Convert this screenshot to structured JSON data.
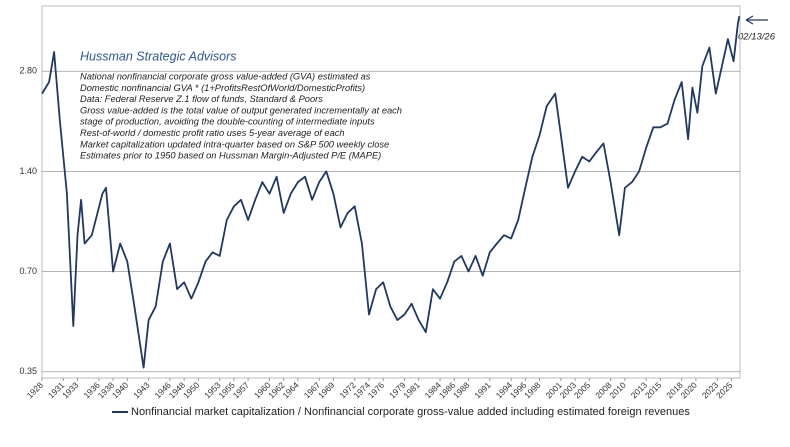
{
  "chart_data": {
    "type": "line",
    "title": "Hussman Strategic Advisors",
    "annotations": [
      "National nonfinancial corporate gross value-added (GVA) estimated as",
      "Domestic nonfinancial GVA * (1+ProfitsRestOfWorld/DomesticProfits)",
      "Data: Federal Reserve Z.1 flow of funds, Standard & Poors",
      "Gross value-added is the total value of output generated incrementally at each",
      "stage of production, avoiding the double-counting of intermediate inputs",
      "Rest-of-world / domestic profit ratio uses 5-year average of each",
      "Market capitalization updated intra-quarter based on S&P 500 weekly close",
      "Estimates prior to 1950 based on Hussman Margin-Adjusted P/E (MAPE)"
    ],
    "date_label": "02/13/26",
    "log_scale": true,
    "grid": true,
    "x": [
      1928.0,
      1929.0,
      1929.7,
      1930.5,
      1931.5,
      1932.4,
      1933.0,
      1933.5,
      1934,
      1935,
      1936.5,
      1937,
      1938,
      1939,
      1940,
      1941,
      1942.3,
      1943,
      1944,
      1945,
      1946,
      1947,
      1948,
      1949,
      1950,
      1951,
      1952,
      1953,
      1954,
      1955,
      1956,
      1957,
      1958,
      1959,
      1960,
      1961,
      1962,
      1963,
      1964,
      1965,
      1966,
      1967,
      1968,
      1969,
      1970,
      1971,
      1972,
      1973,
      1974,
      1975,
      1976,
      1977,
      1978,
      1979,
      1980,
      1981,
      1982,
      1983,
      1984,
      1985,
      1986,
      1987,
      1988,
      1989,
      1990,
      1991,
      1992,
      1993,
      1994,
      1995,
      1996,
      1997,
      1998,
      1999,
      2000.2,
      2001,
      2002,
      2003,
      2004,
      2005,
      2006,
      2007,
      2008,
      2009.2,
      2010,
      2011,
      2012,
      2013,
      2014,
      2015,
      2016,
      2017,
      2018,
      2018.9,
      2019.5,
      2020.2,
      2020.9,
      2021.9,
      2022.8,
      2023.5,
      2024.5,
      2025.3,
      2025.9,
      2026.1
    ],
    "series": [
      {
        "name": "Nonfinancial market capitalization / Nonfinancial corporate gross-value added including estimated foreign revenues",
        "color": "#1f3864",
        "values": [
          2.4,
          2.6,
          3.2,
          2.0,
          1.2,
          0.48,
          0.9,
          1.15,
          0.85,
          0.9,
          1.2,
          1.25,
          0.7,
          0.85,
          0.75,
          0.55,
          0.36,
          0.5,
          0.55,
          0.75,
          0.85,
          0.62,
          0.65,
          0.58,
          0.65,
          0.75,
          0.8,
          0.78,
          1.0,
          1.1,
          1.15,
          1.0,
          1.15,
          1.3,
          1.2,
          1.35,
          1.05,
          1.2,
          1.3,
          1.35,
          1.15,
          1.3,
          1.4,
          1.2,
          0.95,
          1.05,
          1.1,
          0.85,
          0.52,
          0.62,
          0.65,
          0.55,
          0.5,
          0.52,
          0.56,
          0.5,
          0.46,
          0.62,
          0.58,
          0.65,
          0.75,
          0.78,
          0.7,
          0.78,
          0.68,
          0.8,
          0.85,
          0.9,
          0.88,
          1.0,
          1.25,
          1.55,
          1.8,
          2.2,
          2.4,
          1.8,
          1.25,
          1.4,
          1.55,
          1.5,
          1.6,
          1.7,
          1.3,
          0.9,
          1.25,
          1.3,
          1.4,
          1.65,
          1.9,
          1.9,
          1.95,
          2.3,
          2.6,
          1.75,
          2.5,
          2.1,
          2.9,
          3.3,
          2.4,
          2.8,
          3.5,
          3.0,
          3.9,
          4.1
        ]
      }
    ],
    "xlim": [
      1928,
      2026.2
    ],
    "xticks": [
      1928,
      1931,
      1933,
      1936,
      1938,
      1940,
      1943,
      1946,
      1948,
      1950,
      1953,
      1955,
      1957,
      1960,
      1962,
      1964,
      1967,
      1969,
      1972,
      1974,
      1976,
      1979,
      1981,
      1984,
      1986,
      1988,
      1991,
      1994,
      1996,
      1998,
      2001,
      2003,
      2005,
      2008,
      2010,
      2013,
      2015,
      2018,
      2020,
      2023,
      2025
    ],
    "ylim": [
      0.335,
      4.4
    ],
    "yticks": [
      {
        "value": 0.35,
        "label": "0.35"
      },
      {
        "value": 0.7,
        "label": "0.70"
      },
      {
        "value": 1.4,
        "label": "1.40"
      },
      {
        "value": 2.8,
        "label": "2.80"
      }
    ]
  }
}
